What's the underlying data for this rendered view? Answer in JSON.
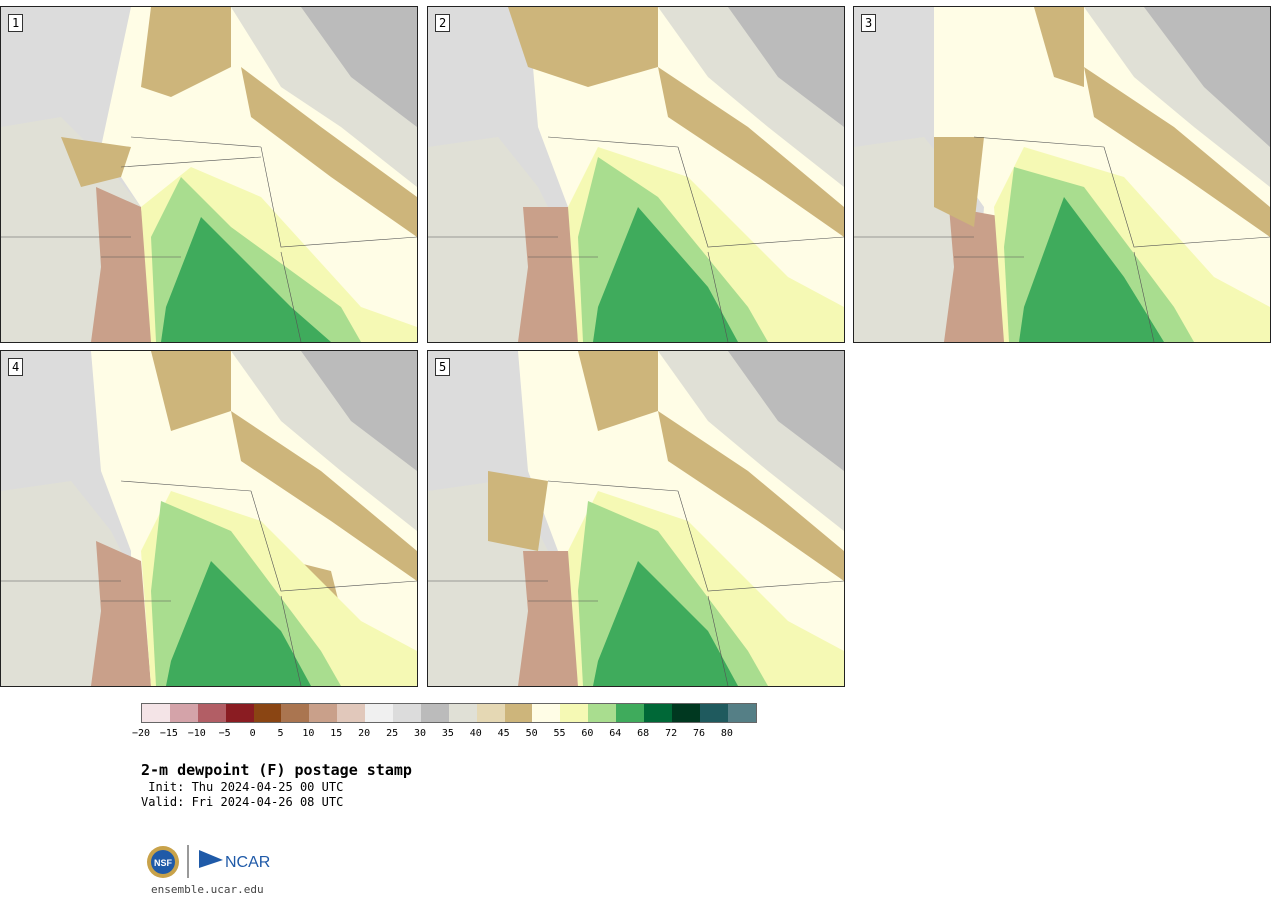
{
  "panels": [
    {
      "label": "1"
    },
    {
      "label": "2"
    },
    {
      "label": "3"
    },
    {
      "label": "4"
    },
    {
      "label": "5"
    }
  ],
  "colorbar": {
    "colors": [
      "#f4e4e7",
      "#d4a3a9",
      "#b25e65",
      "#8a1c22",
      "#8a4513",
      "#aa7550",
      "#c9a08a",
      "#e1c8bb",
      "#f0f0f0",
      "#dcdcdc",
      "#bbbbbb",
      "#e0e0d6",
      "#e5d8b4",
      "#cdb57b",
      "#fffde6",
      "#f5f9b4",
      "#a9dd8f",
      "#3fab5c",
      "#006837",
      "#003820",
      "#1f5a5e",
      "#557f86"
    ],
    "ticks": [
      "−20",
      "−15",
      "−10",
      "−5",
      "0",
      "5",
      "10",
      "15",
      "20",
      "25",
      "30",
      "35",
      "40",
      "45",
      "50",
      "55",
      "60",
      "64",
      "68",
      "72",
      "76",
      "80"
    ]
  },
  "header": {
    "title": "2-m dewpoint (F) postage stamp",
    "init": " Init: Thu 2024-04-25 00 UTC",
    "valid": "Valid: Fri 2024-04-26 08 UTC"
  },
  "footer": {
    "nsf": "NSF",
    "ncar": "NCAR",
    "url": "ensemble.ucar.edu"
  }
}
